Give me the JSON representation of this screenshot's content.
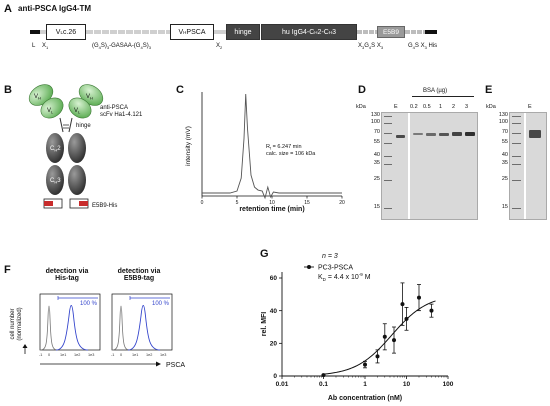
{
  "panel_a": {
    "letter": "A",
    "title": "anti-PSCA IgG4-TM",
    "boxes": {
      "vl": "V",
      "vl_sub": "L",
      "vl_tail": "c.26",
      "vh": "V",
      "vh_sub": "H",
      "vh_tail": " PSCA",
      "hinge": "hinge",
      "hu": "hu IgG4-C",
      "hu_sub1": "H",
      "hu_mid": "2-C",
      "hu_sub2": "H",
      "hu_tail": "3",
      "e5b9": "E5B9"
    },
    "labels": {
      "l": "L",
      "x1": "X",
      "x1_sub": "1",
      "linker": "(G",
      "linker2": "S)",
      "linker3": "-GASAA-(G",
      "linker4": "S)",
      "x2": "X",
      "x2_sub": "2",
      "x3g4s": "X",
      "x3g4s_rest": "G",
      "x3g4s_rest2": "S X",
      "g4sx3his": "G",
      "g4sx3his_2": "S X",
      "g4sx3his_3": " His"
    }
  },
  "panel_b": {
    "letter": "B",
    "scfv_label_1": "anti-PSCA",
    "scfv_label_2": "scFv Ha1-4.121",
    "vl": "V",
    "vl_sub": "L",
    "vh": "V",
    "vh_sub": "H",
    "hinge": "hinge",
    "ch2": "C",
    "ch2_sub": "H",
    "ch2_num": "2",
    "ch3": "C",
    "ch3_sub": "H",
    "ch3_num": "3",
    "tag": "E5B9-His"
  },
  "panel_c": {
    "letter": "C",
    "ylabel": "intensity (mV)",
    "xlabel": "retention time (min)",
    "annotation_1": "R",
    "annotation_1_sub": "t",
    "annotation_1_tail": " = 6.247 min",
    "annotation_2": "calc. size = 106 kDa",
    "x_ticks": [
      "0",
      "5",
      "10",
      "15",
      "20"
    ]
  },
  "panel_d": {
    "letter": "D",
    "kda": "kDa",
    "bsa_header": "BSA (µg)",
    "lane_labels": [
      "E",
      "0.2",
      "0.5",
      "1",
      "2",
      "3"
    ],
    "markers": [
      "130",
      "100",
      "70",
      "55",
      "40",
      "35",
      "25",
      "15"
    ]
  },
  "panel_e": {
    "letter": "E",
    "kda": "kDa",
    "lane_label": "E",
    "markers": [
      "130",
      "100",
      "70",
      "55",
      "40",
      "35",
      "25",
      "15"
    ]
  },
  "panel_f": {
    "letter": "F",
    "ylabel_1": "cell number",
    "ylabel_2": "(normalized)",
    "xlabel": "PSCA",
    "plot1_title_1": "detection via",
    "plot1_title_2": "His-tag",
    "plot2_title_1": "detection via",
    "plot2_title_2": "E5B9-tag",
    "percent": "100 %",
    "x_ticks": [
      "-1",
      "0",
      "1e1",
      "1e2",
      "1e3"
    ]
  },
  "panel_g": {
    "letter": "G",
    "n_label": "n = 3",
    "legend_series": "PC3-PSCA",
    "kd_label": "K",
    "kd_sub": "D",
    "kd_value": " = 4.4 x 10",
    "kd_exp": "-9",
    "kd_unit": " M",
    "ylabel": "rel. MFI",
    "xlabel": "Ab concentration (nM)",
    "x_ticks": [
      "0.01",
      "0.1",
      "1",
      "10",
      "100"
    ],
    "y_ticks": [
      "0",
      "20",
      "40",
      "60"
    ]
  },
  "chart_data": [
    {
      "type": "line",
      "title": "",
      "xlabel": "retention time (min)",
      "ylabel": "intensity (mV)",
      "xlim": [
        0,
        20
      ],
      "x_ticks": [
        0,
        5,
        10,
        15,
        20
      ],
      "series": [
        {
          "x": [
            0,
            4,
            5,
            5.6,
            6.0,
            6.247,
            6.5,
            7.0,
            7.5,
            8.0,
            8.6,
            9.0,
            9.4,
            9.8,
            10.2,
            11,
            12,
            14,
            20
          ],
          "y": [
            0.0,
            0.0,
            0.02,
            0.15,
            0.55,
            1.0,
            0.65,
            0.18,
            0.06,
            0.03,
            0.02,
            -0.05,
            0.06,
            -0.04,
            0.01,
            0.0,
            0.0,
            0.0,
            0.0
          ]
        }
      ]
    },
    {
      "type": "scatter",
      "title": "",
      "xlabel": "Ab concentration (nM)",
      "ylabel": "rel. MFI",
      "xscale": "log",
      "xlim": [
        0.01,
        100
      ],
      "ylim": [
        0,
        60
      ],
      "x_ticks": [
        0.01,
        0.1,
        1,
        10,
        100
      ],
      "y_ticks": [
        0,
        20,
        40,
        60
      ],
      "series": [
        {
          "name": "PC3-PSCA",
          "x": [
            0.1,
            1,
            2,
            3,
            5,
            8,
            10,
            20,
            40
          ],
          "y": [
            0.5,
            7,
            12,
            24,
            22,
            44,
            35,
            48,
            40
          ],
          "err": [
            0.5,
            2,
            4,
            8,
            8,
            13,
            7,
            8,
            4
          ]
        }
      ],
      "fit": {
        "type": "hill",
        "kd_nM": 4.4,
        "bmax": 50
      }
    }
  ]
}
